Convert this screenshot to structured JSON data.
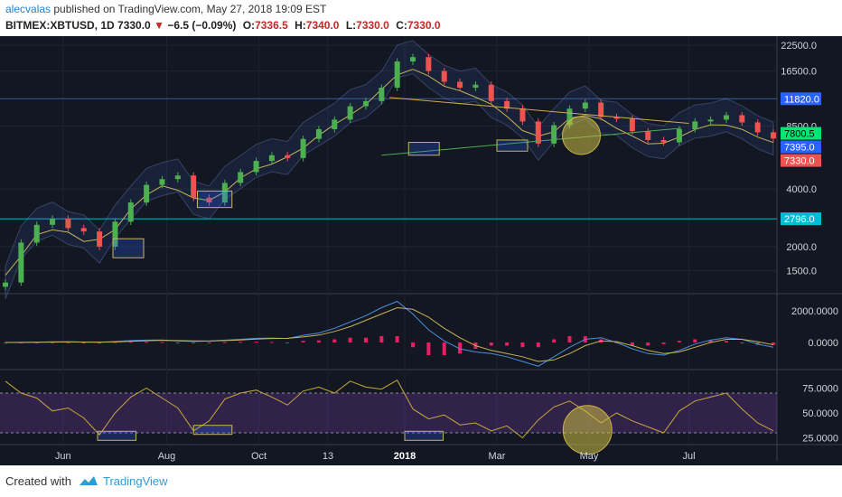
{
  "header": {
    "author": "alecvalas",
    "published_text": "published on TradingView.com, May 27, 2018 19:09 EST",
    "symbol": "BITMEX:XBTUSD, 1D",
    "last_price": "7330.0",
    "change": "−6.5 (−0.09%)",
    "open_label": "O:",
    "open": "7336.5",
    "high_label": "H:",
    "high": "7340.0",
    "low_label": "L:",
    "low": "7330.0",
    "close_label": "C:",
    "close": "7330.0"
  },
  "footer": {
    "created_with": "Created with",
    "brand": "TradingView"
  },
  "chart_data": [
    {
      "type": "line",
      "panel": "price",
      "scale": "log",
      "ylim": [
        1200,
        23500
      ],
      "x_ticks": [
        "Jun",
        "Aug",
        "Oct",
        "13",
        "2018",
        "Mar",
        "May",
        "Jul"
      ],
      "y_ticks": [
        "22500.0",
        "16500.0",
        "8500.0",
        "4000.0",
        "2000.0",
        "1500.0"
      ],
      "price_labels": [
        {
          "value": 11820.0,
          "text": "11820.0",
          "color": "#2962ff"
        },
        {
          "value": 7800.5,
          "text": "7800.5",
          "color": "#00e676"
        },
        {
          "value": 7395.0,
          "text": "7395.0",
          "color": "#2962ff"
        },
        {
          "value": 7330.0,
          "text": "7330.0",
          "color": "#ef5350"
        },
        {
          "value": 2796.0,
          "text": "2796.0",
          "color": "#00bcd4"
        }
      ],
      "horizontal_lines": [
        {
          "value": 11820.0,
          "color": "#3d5a99"
        },
        {
          "value": 2796.0,
          "color": "#00bcd4"
        }
      ],
      "series": [
        {
          "name": "",
          "values": [
            1300,
            2100,
            2600,
            2800,
            2500,
            2400,
            2000,
            2700,
            3400,
            4200,
            4500,
            4700,
            3600,
            3400,
            4300,
            4900,
            5600,
            6000,
            5800,
            7300,
            8200,
            9200,
            10800,
            11500,
            13500,
            18500,
            19500,
            16500,
            14500,
            13500,
            14000,
            11500,
            10500,
            9000,
            6900,
            8600,
            10500,
            11300,
            9500,
            9300,
            8000,
            7200,
            7000,
            8200,
            9000,
            9200,
            9700,
            8900,
            7900,
            7330
          ]
        }
      ],
      "green_support": [
        [
          0.49,
          6000
        ],
        [
          0.88,
          8300
        ]
      ],
      "orange_resistance": [
        [
          0.5,
          12000
        ],
        [
          0.89,
          8800
        ]
      ],
      "boxes": [
        [
          0.14,
          0.18,
          1750,
          2200
        ],
        [
          0.25,
          0.295,
          3200,
          3900
        ],
        [
          0.525,
          0.565,
          6000,
          7000
        ],
        [
          0.64,
          0.68,
          6300,
          7200
        ]
      ],
      "circle": [
        0.75,
        7600
      ]
    },
    {
      "type": "line",
      "panel": "macd",
      "y_ticks": [
        "2000.0000",
        "0.0000"
      ],
      "series": [
        {
          "name": "",
          "values": [
            0,
            5,
            15,
            40,
            50,
            20,
            10,
            60,
            120,
            150,
            160,
            90,
            60,
            90,
            150,
            200,
            260,
            280,
            250,
            450,
            600,
            900,
            1300,
            1700,
            2200,
            2600,
            1800,
            800,
            100,
            -400,
            -600,
            -700,
            -900,
            -1200,
            -1500,
            -900,
            -300,
            200,
            300,
            0,
            -400,
            -700,
            -800,
            -500,
            -100,
            150,
            300,
            200,
            -100,
            -300
          ]
        },
        {
          "name": "",
          "values": [
            0,
            3,
            10,
            25,
            35,
            28,
            20,
            35,
            70,
            110,
            140,
            120,
            95,
            90,
            120,
            160,
            210,
            250,
            260,
            350,
            470,
            700,
            1000,
            1400,
            1800,
            2200,
            2100,
            1600,
            900,
            300,
            -200,
            -500,
            -700,
            -900,
            -1200,
            -1100,
            -700,
            -200,
            100,
            50,
            -200,
            -500,
            -700,
            -600,
            -300,
            0,
            200,
            200,
            50,
            -150
          ]
        }
      ]
    },
    {
      "type": "line",
      "panel": "rsi",
      "ylim": [
        20,
        90
      ],
      "y_ticks": [
        "75.0000",
        "50.0000",
        "25.0000"
      ],
      "bands": [
        30,
        70
      ],
      "series": [
        {
          "name": "",
          "values": [
            82,
            70,
            65,
            52,
            55,
            45,
            28,
            50,
            66,
            75,
            65,
            55,
            32,
            42,
            64,
            70,
            73,
            66,
            58,
            72,
            76,
            70,
            82,
            76,
            74,
            83,
            54,
            44,
            48,
            38,
            40,
            32,
            37,
            25,
            43,
            56,
            62,
            52,
            40,
            50,
            42,
            36,
            30,
            52,
            62,
            66,
            70,
            54,
            40,
            32
          ]
        }
      ],
      "highlights": [
        [
          0.12,
          0.17,
          27
        ],
        [
          0.245,
          0.295,
          33
        ],
        [
          0.52,
          0.57,
          27
        ]
      ],
      "circle": [
        0.758,
        33
      ]
    }
  ]
}
